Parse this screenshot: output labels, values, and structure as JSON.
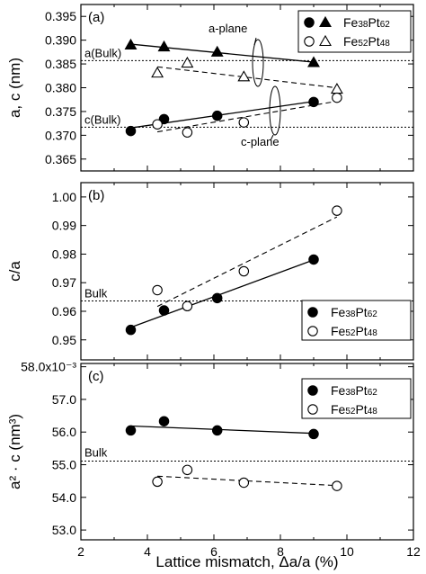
{
  "figure": {
    "xlabel": "Lattice mismatch, Δa/a (%)",
    "xlim": [
      2,
      12
    ],
    "xticks": [
      "2",
      "4",
      "6",
      "8",
      "10",
      "12"
    ],
    "xtick_values": [
      2,
      4,
      6,
      8,
      10,
      12
    ]
  },
  "chart_data": [
    {
      "type": "scatter",
      "panel_label": "(a)",
      "ylabel": "a, c (nm)",
      "ylim": [
        0.3625,
        0.3975
      ],
      "yticks": [
        "0.365",
        "0.370",
        "0.375",
        "0.380",
        "0.385",
        "0.390",
        "0.395"
      ],
      "ytick_values": [
        0.365,
        0.37,
        0.375,
        0.38,
        0.385,
        0.39,
        0.395
      ],
      "reference_lines": [
        {
          "label": "a(Bulk)",
          "y": 0.3857
        },
        {
          "label": "c(Bulk)",
          "y": 0.3717
        }
      ],
      "annotations": [
        "a-plane",
        "c-plane"
      ],
      "legend": [
        {
          "base": "Fe",
          "sub1": "38",
          "mid": "Pt",
          "sub2": "62",
          "markers": [
            "filled-circle",
            "filled-triangle"
          ]
        },
        {
          "base": "Fe",
          "sub1": "52",
          "mid": "Pt",
          "sub2": "48",
          "markers": [
            "open-circle",
            "open-triangle"
          ]
        }
      ],
      "series": [
        {
          "name": "Fe38Pt62 a",
          "marker": "filled-triangle",
          "fit": "solid",
          "x": [
            3.5,
            4.5,
            6.1,
            9.0
          ],
          "y": [
            0.389,
            0.3886,
            0.3875,
            0.3853
          ]
        },
        {
          "name": "Fe52Pt48 a",
          "marker": "open-triangle",
          "fit": "dashed",
          "x": [
            4.3,
            5.2,
            6.9,
            9.7
          ],
          "y": [
            0.3831,
            0.3852,
            0.3823,
            0.3797
          ]
        },
        {
          "name": "Fe38Pt62 c",
          "marker": "filled-circle",
          "fit": "solid",
          "x": [
            3.5,
            4.5,
            6.1,
            9.0
          ],
          "y": [
            0.3709,
            0.3734,
            0.3741,
            0.377
          ]
        },
        {
          "name": "Fe52Pt48 c",
          "marker": "open-circle",
          "fit": "dashed",
          "x": [
            4.3,
            5.2,
            6.9,
            9.7
          ],
          "y": [
            0.3723,
            0.3706,
            0.3727,
            0.3779
          ]
        }
      ]
    },
    {
      "type": "scatter",
      "panel_label": "(b)",
      "ylabel": "c/a",
      "ylim": [
        0.943,
        1.005
      ],
      "yticks": [
        "0.95",
        "0.96",
        "0.97",
        "0.98",
        "0.99",
        "1.00"
      ],
      "ytick_values": [
        0.95,
        0.96,
        0.97,
        0.98,
        0.99,
        1.0
      ],
      "reference_lines": [
        {
          "label": "Bulk",
          "y": 0.9636
        }
      ],
      "legend": [
        {
          "base": "Fe",
          "sub1": "38",
          "mid": "Pt",
          "sub2": "62",
          "markers": [
            "filled-circle"
          ]
        },
        {
          "base": "Fe",
          "sub1": "52",
          "mid": "Pt",
          "sub2": "48",
          "markers": [
            "open-circle"
          ]
        }
      ],
      "series": [
        {
          "name": "Fe38Pt62",
          "marker": "filled-circle",
          "fit": "solid",
          "x": [
            3.5,
            4.5,
            6.1,
            9.0
          ],
          "y": [
            0.9535,
            0.9603,
            0.9646,
            0.9781
          ]
        },
        {
          "name": "Fe52Pt48",
          "marker": "open-circle",
          "fit": "dashed",
          "x": [
            4.3,
            5.2,
            6.9,
            9.7
          ],
          "y": [
            0.9674,
            0.9618,
            0.974,
            0.9952
          ]
        }
      ]
    },
    {
      "type": "scatter",
      "panel_label": "(c)",
      "ylabel": "a² · c (nm³)",
      "ylim": [
        0.0527,
        0.0581
      ],
      "yticks": [
        "53.0",
        "54.0",
        "55.0",
        "56.0",
        "57.0",
        "58.0x10⁻³"
      ],
      "ytick_values": [
        0.053,
        0.054,
        0.055,
        0.056,
        0.057,
        0.058
      ],
      "reference_lines": [
        {
          "label": "Bulk",
          "y": 0.05511
        }
      ],
      "legend": [
        {
          "base": "Fe",
          "sub1": "38",
          "mid": "Pt",
          "sub2": "62",
          "markers": [
            "filled-circle"
          ]
        },
        {
          "base": "Fe",
          "sub1": "52",
          "mid": "Pt",
          "sub2": "48",
          "markers": [
            "open-circle"
          ]
        }
      ],
      "series": [
        {
          "name": "Fe38Pt62",
          "marker": "filled-circle",
          "fit": "solid",
          "x": [
            3.5,
            4.5,
            6.1,
            9.0
          ],
          "y": [
            0.05605,
            0.05633,
            0.05605,
            0.05594
          ]
        },
        {
          "name": "Fe52Pt48",
          "marker": "open-circle",
          "fit": "dashed",
          "x": [
            4.3,
            5.2,
            6.9,
            9.7
          ],
          "y": [
            0.05448,
            0.05484,
            0.05445,
            0.05435
          ]
        }
      ]
    }
  ]
}
